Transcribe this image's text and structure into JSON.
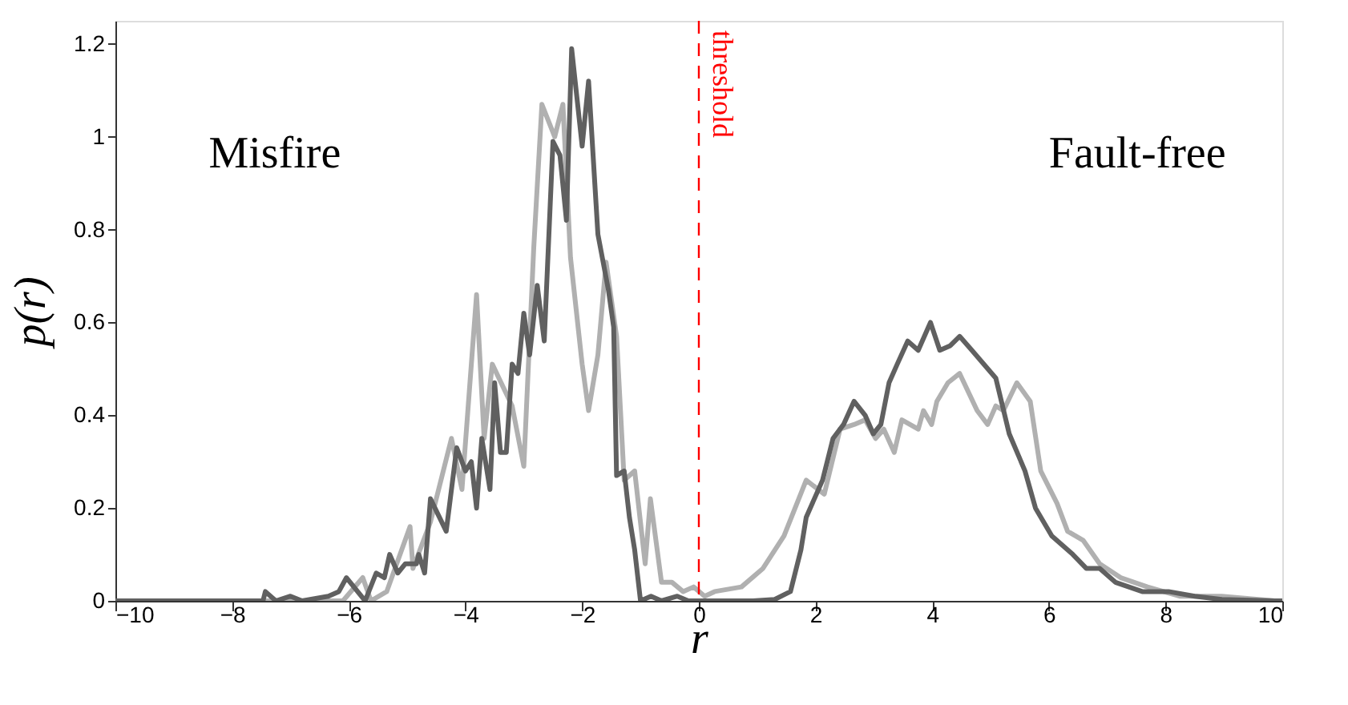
{
  "chart_data": {
    "type": "line",
    "xlabel": "r",
    "ylabel": "p(r)",
    "xlim": [
      -10,
      10
    ],
    "ylim": [
      0,
      1.25
    ],
    "xticks": [
      -10,
      -8,
      -6,
      -4,
      -2,
      0,
      2,
      4,
      6,
      8,
      10
    ],
    "yticks": [
      0,
      0.2,
      0.4,
      0.6,
      0.8,
      1,
      1.2
    ],
    "grid": false,
    "line_style": "solid",
    "marker": "none",
    "annotations": [
      "Misfire",
      "Fault-free"
    ],
    "ref_lines": [
      {
        "axis": "x",
        "value": 0,
        "label": "threshold",
        "color": "#ff0000",
        "line_style": "dashed"
      }
    ],
    "series": [
      {
        "color": "#b0b0b0",
        "x": [
          -10,
          -7.0,
          -6.7,
          -6.45,
          -6.1,
          -5.76,
          -5.62,
          -5.35,
          -4.95,
          -4.9,
          -4.6,
          -4.24,
          -4.06,
          -3.81,
          -3.68,
          -3.54,
          -3.2,
          -3.0,
          -2.83,
          -2.69,
          -2.47,
          -2.33,
          -2.2,
          -2.0,
          -1.89,
          -1.73,
          -1.59,
          -1.41,
          -1.28,
          -1.1,
          -0.92,
          -0.83,
          -0.64,
          -0.46,
          -0.27,
          -0.09,
          0.1,
          0.27,
          0.73,
          1.1,
          1.46,
          1.84,
          2.15,
          2.42,
          2.66,
          2.85,
          3.03,
          3.17,
          3.35,
          3.48,
          3.76,
          3.85,
          3.99,
          4.08,
          4.27,
          4.47,
          4.77,
          4.95,
          5.09,
          5.22,
          5.45,
          5.68,
          5.86,
          6.14,
          6.32,
          6.59,
          6.87,
          7.23,
          7.69,
          8.24,
          8.96,
          9.87,
          10
        ],
        "values": [
          0,
          0,
          0,
          0,
          0,
          0.05,
          0,
          0.02,
          0.16,
          0.07,
          0.17,
          0.35,
          0.24,
          0.66,
          0.35,
          0.51,
          0.42,
          0.29,
          0.76,
          1.07,
          1.0,
          1.07,
          0.74,
          0.51,
          0.41,
          0.53,
          0.73,
          0.57,
          0.26,
          0.28,
          0.08,
          0.22,
          0.04,
          0.04,
          0.02,
          0.03,
          0.01,
          0.02,
          0.03,
          0.07,
          0.14,
          0.26,
          0.23,
          0.37,
          0.38,
          0.39,
          0.35,
          0.37,
          0.32,
          0.39,
          0.37,
          0.41,
          0.38,
          0.43,
          0.47,
          0.49,
          0.41,
          0.38,
          0.42,
          0.41,
          0.47,
          0.43,
          0.28,
          0.21,
          0.15,
          0.13,
          0.08,
          0.05,
          0.03,
          0.01,
          0.01,
          0,
          0
        ]
      },
      {
        "color": "#606060",
        "x": [
          -10,
          -7.47,
          -7.43,
          -7.25,
          -7.0,
          -6.8,
          -6.35,
          -6.17,
          -6.04,
          -5.72,
          -5.53,
          -5.39,
          -5.3,
          -5.16,
          -5.03,
          -4.84,
          -4.8,
          -4.7,
          -4.6,
          -4.33,
          -4.15,
          -4.0,
          -3.9,
          -3.81,
          -3.72,
          -3.58,
          -3.5,
          -3.4,
          -3.3,
          -3.2,
          -3.1,
          -3.0,
          -2.9,
          -2.77,
          -2.65,
          -2.5,
          -2.38,
          -2.27,
          -2.18,
          -2.0,
          -1.89,
          -1.73,
          -1.55,
          -1.46,
          -1.41,
          -1.28,
          -1.19,
          -1.1,
          -1.0,
          -0.82,
          -0.64,
          -0.37,
          -0.18,
          0.93,
          1.3,
          1.57,
          1.75,
          1.84,
          2.12,
          2.3,
          2.48,
          2.66,
          2.85,
          2.99,
          3.12,
          3.26,
          3.4,
          3.58,
          3.76,
          3.97,
          4.13,
          4.31,
          4.47,
          4.68,
          5.09,
          5.32,
          5.59,
          5.77,
          6.05,
          6.41,
          6.64,
          6.87,
          7.14,
          7.6,
          8.05,
          8.5,
          8.96,
          9.87,
          10
        ],
        "values": [
          0,
          0,
          0.02,
          0,
          0.01,
          0,
          0.01,
          0.02,
          0.05,
          0,
          0.06,
          0.05,
          0.1,
          0.06,
          0.08,
          0.08,
          0.1,
          0.06,
          0.22,
          0.15,
          0.33,
          0.28,
          0.3,
          0.2,
          0.35,
          0.24,
          0.47,
          0.32,
          0.32,
          0.51,
          0.49,
          0.62,
          0.53,
          0.68,
          0.56,
          0.99,
          0.96,
          0.82,
          1.19,
          0.98,
          1.12,
          0.79,
          0.67,
          0.59,
          0.27,
          0.28,
          0.18,
          0.11,
          0,
          0.01,
          0,
          0.01,
          0,
          0,
          0.003,
          0.02,
          0.11,
          0.18,
          0.26,
          0.35,
          0.38,
          0.43,
          0.4,
          0.36,
          0.38,
          0.47,
          0.51,
          0.56,
          0.54,
          0.6,
          0.54,
          0.55,
          0.57,
          0.54,
          0.48,
          0.36,
          0.28,
          0.2,
          0.14,
          0.1,
          0.07,
          0.07,
          0.04,
          0.02,
          0.02,
          0.01,
          0.003,
          0,
          0
        ]
      }
    ]
  }
}
